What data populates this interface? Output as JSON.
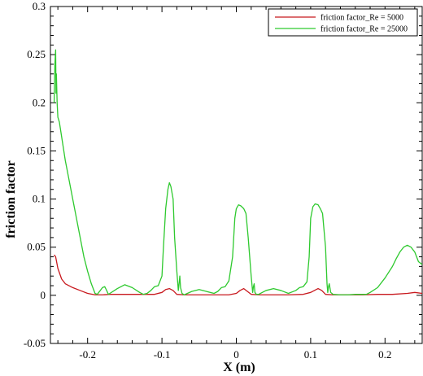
{
  "chart_data": {
    "type": "line",
    "xlabel": "X (m)",
    "ylabel": "friction factor",
    "xlim": [
      -0.25,
      0.25
    ],
    "ylim": [
      -0.05,
      0.3
    ],
    "xticks": [
      -0.2,
      -0.1,
      0,
      0.1,
      0.2
    ],
    "xtick_labels": [
      "-0.2",
      "-0.1",
      "0",
      "0.1",
      "0.2"
    ],
    "yticks": [
      -0.05,
      0,
      0.05,
      0.1,
      0.15,
      0.2,
      0.25,
      0.3
    ],
    "ytick_labels": [
      "-0.05",
      "0",
      "0.05",
      "0.1",
      "0.15",
      "0.2",
      "0.25",
      "0.3"
    ],
    "grid": false,
    "legend_position": "top-right",
    "series": [
      {
        "name": "friction factor_Re = 5000",
        "color": "#c8191e",
        "x": [
          -0.245,
          -0.243,
          -0.24,
          -0.235,
          -0.23,
          -0.22,
          -0.21,
          -0.2,
          -0.19,
          -0.18,
          -0.17,
          -0.15,
          -0.13,
          -0.11,
          -0.1,
          -0.095,
          -0.09,
          -0.085,
          -0.08,
          -0.07,
          -0.05,
          -0.03,
          -0.01,
          0.0,
          0.005,
          0.01,
          0.015,
          0.02,
          0.03,
          0.05,
          0.07,
          0.09,
          0.1,
          0.105,
          0.11,
          0.115,
          0.12,
          0.13,
          0.15,
          0.17,
          0.19,
          0.21,
          0.23,
          0.24,
          0.25
        ],
        "y": [
          0.042,
          0.04,
          0.028,
          0.017,
          0.012,
          0.008,
          0.005,
          0.002,
          0.0005,
          0.0005,
          0.001,
          0.001,
          0.001,
          0.001,
          0.003,
          0.006,
          0.007,
          0.005,
          0.001,
          0.0005,
          0.0005,
          0.0005,
          0.0005,
          0.002,
          0.005,
          0.007,
          0.004,
          0.001,
          0.0005,
          0.0005,
          0.0005,
          0.001,
          0.003,
          0.005,
          0.007,
          0.005,
          0.001,
          0.0005,
          0.0005,
          0.0005,
          0.001,
          0.001,
          0.002,
          0.003,
          0.002
        ]
      },
      {
        "name": "friction factor_Re = 25000",
        "color": "#2ec92e",
        "x": [
          -0.245,
          -0.244,
          -0.243,
          -0.2425,
          -0.242,
          -0.241,
          -0.24,
          -0.238,
          -0.236,
          -0.233,
          -0.23,
          -0.225,
          -0.22,
          -0.215,
          -0.21,
          -0.205,
          -0.2,
          -0.195,
          -0.19,
          -0.187,
          -0.185,
          -0.18,
          -0.177,
          -0.175,
          -0.172,
          -0.17,
          -0.16,
          -0.15,
          -0.14,
          -0.13,
          -0.125,
          -0.12,
          -0.115,
          -0.11,
          -0.105,
          -0.1,
          -0.098,
          -0.095,
          -0.092,
          -0.09,
          -0.088,
          -0.085,
          -0.083,
          -0.08,
          -0.078,
          -0.077,
          -0.076,
          -0.075,
          -0.073,
          -0.07,
          -0.06,
          -0.05,
          -0.04,
          -0.03,
          -0.025,
          -0.02,
          -0.015,
          -0.01,
          -0.005,
          -0.002,
          0.0,
          0.003,
          0.006,
          0.01,
          0.013,
          0.016,
          0.02,
          0.022,
          0.023,
          0.024,
          0.025,
          0.027,
          0.03,
          0.04,
          0.05,
          0.06,
          0.07,
          0.08,
          0.085,
          0.09,
          0.095,
          0.098,
          0.1,
          0.103,
          0.106,
          0.11,
          0.113,
          0.116,
          0.12,
          0.122,
          0.123,
          0.124,
          0.125,
          0.127,
          0.13,
          0.14,
          0.15,
          0.16,
          0.17,
          0.175,
          0.18,
          0.19,
          0.2,
          0.21,
          0.215,
          0.22,
          0.225,
          0.23,
          0.235,
          0.24,
          0.245,
          0.25
        ],
        "y": [
          0.2,
          0.24,
          0.255,
          0.21,
          0.23,
          0.2,
          0.185,
          0.18,
          0.17,
          0.155,
          0.14,
          0.12,
          0.1,
          0.08,
          0.06,
          0.04,
          0.025,
          0.012,
          0.002,
          0.001,
          0.003,
          0.008,
          0.009,
          0.006,
          0.001,
          0.002,
          0.007,
          0.011,
          0.008,
          0.003,
          0.001,
          0.002,
          0.005,
          0.009,
          0.01,
          0.02,
          0.05,
          0.09,
          0.11,
          0.117,
          0.113,
          0.1,
          0.06,
          0.025,
          0.005,
          0.012,
          0.02,
          0.008,
          0.002,
          0.0005,
          0.004,
          0.006,
          0.004,
          0.002,
          0.004,
          0.008,
          0.009,
          0.015,
          0.04,
          0.08,
          0.09,
          0.094,
          0.093,
          0.09,
          0.085,
          0.06,
          0.02,
          0.003,
          0.009,
          0.012,
          0.003,
          0.001,
          0.001,
          0.005,
          0.007,
          0.005,
          0.002,
          0.005,
          0.008,
          0.009,
          0.014,
          0.04,
          0.08,
          0.092,
          0.095,
          0.094,
          0.09,
          0.085,
          0.05,
          0.012,
          0.003,
          0.009,
          0.012,
          0.003,
          0.001,
          0.0005,
          0.0005,
          0.001,
          0.001,
          0.001,
          0.003,
          0.008,
          0.018,
          0.03,
          0.038,
          0.045,
          0.05,
          0.052,
          0.05,
          0.045,
          0.035,
          0.032
        ]
      }
    ]
  }
}
